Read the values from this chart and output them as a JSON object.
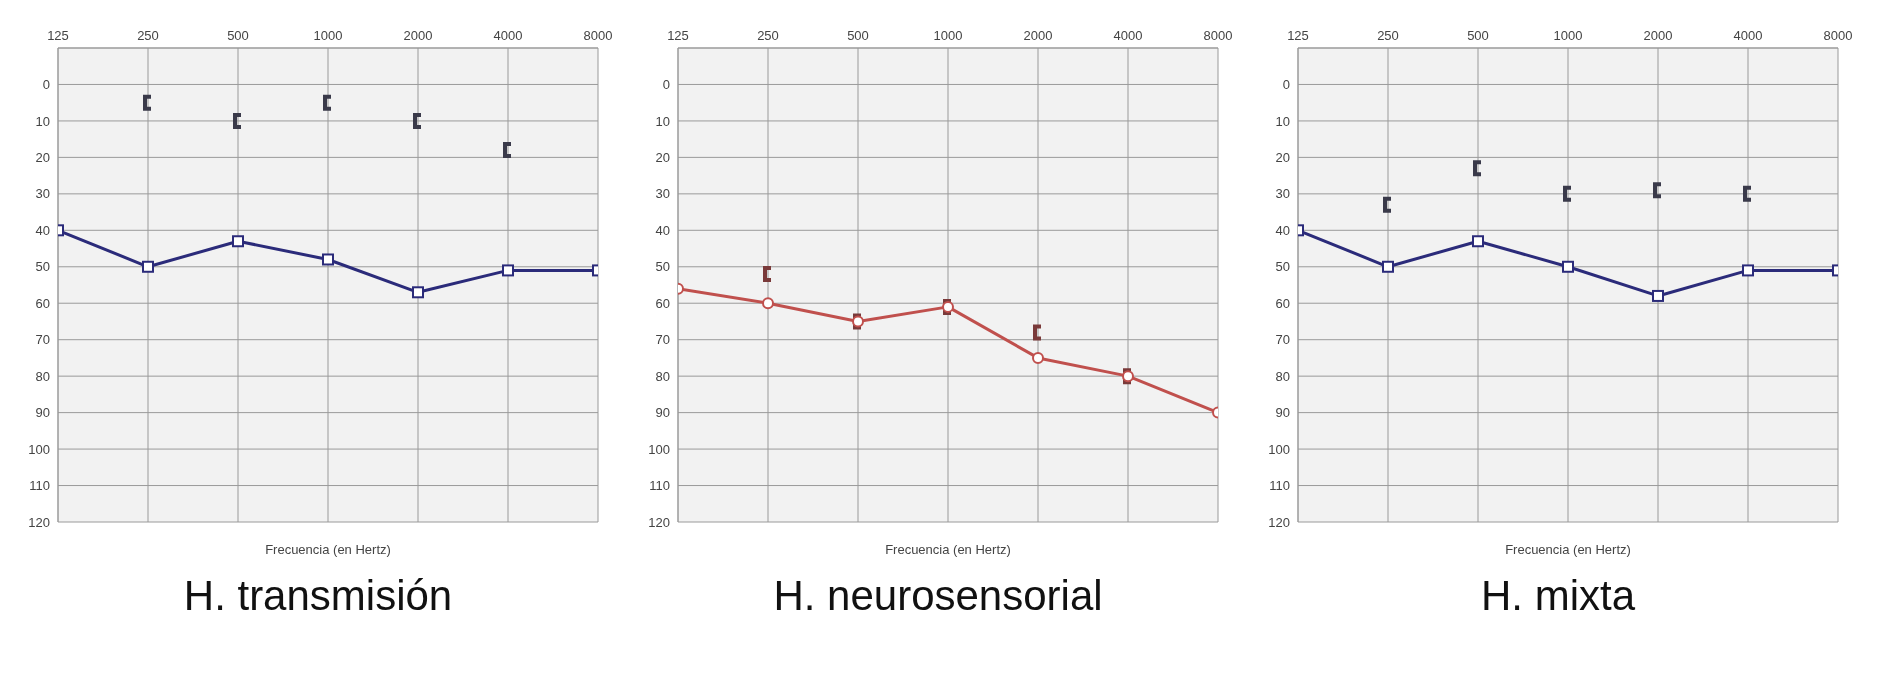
{
  "chart_data": [
    {
      "type": "line",
      "title": "H. transmisión",
      "xlabel": "Frecuencia (en Hertz)",
      "categories": [
        "125",
        "250",
        "500",
        "1000",
        "2000",
        "4000",
        "8000"
      ],
      "ylim": [
        120,
        -10
      ],
      "yticks": [
        0,
        10,
        20,
        30,
        40,
        50,
        60,
        70,
        80,
        90,
        100,
        110,
        120
      ],
      "grid": true,
      "series": [
        {
          "color": "#2b2b7a",
          "marker": "square",
          "values": [
            40,
            50,
            43,
            48,
            57,
            51,
            51
          ]
        },
        {
          "type": "scatter",
          "color": "#3a3a4a",
          "values": [
            null,
            5,
            10,
            5,
            10,
            18,
            null
          ]
        }
      ]
    },
    {
      "type": "line",
      "title": "H. neurosensorial",
      "xlabel": "Frecuencia (en Hertz)",
      "categories": [
        "125",
        "250",
        "500",
        "1000",
        "2000",
        "4000",
        "8000"
      ],
      "ylim": [
        120,
        -10
      ],
      "yticks": [
        0,
        10,
        20,
        30,
        40,
        50,
        60,
        70,
        80,
        90,
        100,
        110,
        120
      ],
      "grid": true,
      "series": [
        {
          "color": "#c0504d",
          "marker": "circle",
          "values": [
            56,
            60,
            65,
            61,
            75,
            80,
            90
          ]
        },
        {
          "type": "scatter",
          "color": "#7a3a3a",
          "values": [
            null,
            52,
            65,
            61,
            68,
            80,
            null
          ]
        }
      ]
    },
    {
      "type": "line",
      "title": "H. mixta",
      "xlabel": "Frecuencia (en Hertz)",
      "categories": [
        "125",
        "250",
        "500",
        "1000",
        "2000",
        "4000",
        "8000"
      ],
      "ylim": [
        120,
        -10
      ],
      "yticks": [
        0,
        10,
        20,
        30,
        40,
        50,
        60,
        70,
        80,
        90,
        100,
        110,
        120
      ],
      "grid": true,
      "series": [
        {
          "color": "#2b2b7a",
          "marker": "square",
          "values": [
            40,
            50,
            43,
            50,
            58,
            51,
            51
          ]
        },
        {
          "type": "scatter",
          "color": "#3a3a4a",
          "values": [
            null,
            33,
            23,
            30,
            29,
            30,
            null
          ]
        }
      ]
    }
  ]
}
